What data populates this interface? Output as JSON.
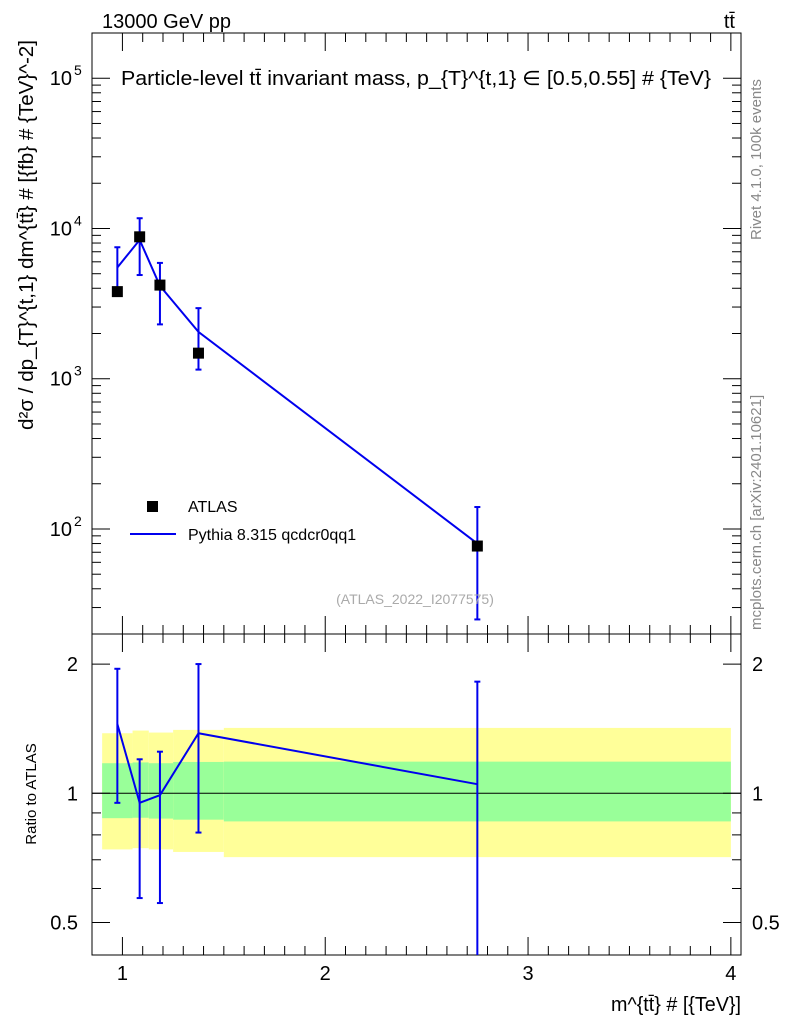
{
  "header": {
    "energy_label": "13000 GeV pp",
    "process_label": "tt̄",
    "side_version": "Rivet 4.1.0,  100k events",
    "side_source": "mcplots.cern.ch [arXiv:2401.10621]",
    "watermark": "(ATLAS_2022_I2077575)"
  },
  "chart_data": [
    {
      "type": "line",
      "panel": "main",
      "title": "Particle-level tt̄ invariant mass, p_{T}^{t,1} ∈ [0.5,0.55] # {TeV}",
      "ylabel": "d²σ / dp_{T}^{t,1} dm^{tt̄} # [{fb} # {TeV}^-2]",
      "xlabel": "m^{tt̄} # [{TeV}]",
      "yscale": "log",
      "xlim": [
        0.85,
        4.05
      ],
      "ylim": [
        20,
        200000
      ],
      "y_tick_labels": [
        "10^2",
        "10^3",
        "10^4",
        "10^5"
      ],
      "legend": [
        "ATLAS",
        "Pythia 8.315 qcdcr0qq1"
      ],
      "series": [
        {
          "name": "ATLAS",
          "marker": "square",
          "color": "#000000",
          "x": [
            0.975,
            1.085,
            1.185,
            1.375,
            2.75
          ],
          "values": [
            3800,
            8800,
            4200,
            1480,
            77
          ]
        },
        {
          "name": "Pythia 8.315 qcdcr0qq1",
          "marker": "line",
          "color": "#0000ee",
          "x": [
            0.975,
            1.085,
            1.185,
            1.375,
            2.75
          ],
          "values": [
            5500,
            8400,
            4150,
            2050,
            80
          ],
          "err_low": [
            3800,
            4900,
            2300,
            1150,
            25
          ],
          "err_high": [
            7500,
            11700,
            5900,
            2950,
            140
          ]
        }
      ]
    },
    {
      "type": "line",
      "panel": "ratio",
      "ylabel": "Ratio to ATLAS",
      "xlabel": "m^{tt̄} # [{TeV}]",
      "yscale": "log",
      "xlim": [
        0.85,
        4.05
      ],
      "ylim": [
        0.42,
        2.35
      ],
      "x_tick_labels": [
        "1",
        "2",
        "3",
        "4"
      ],
      "y_tick_labels": [
        "0.5",
        "1",
        "2"
      ],
      "reference_line": 1,
      "bands": {
        "x_edges": [
          0.9,
          1.05,
          1.13,
          1.25,
          1.5,
          4.0
        ],
        "outer_low": [
          0.74,
          0.745,
          0.74,
          0.73,
          0.71
        ],
        "outer_high": [
          1.38,
          1.4,
          1.385,
          1.405,
          1.42
        ],
        "inner_low": [
          0.875,
          0.877,
          0.873,
          0.868,
          0.86
        ],
        "inner_high": [
          1.175,
          1.18,
          1.175,
          1.183,
          1.185
        ],
        "outer_color": "#ffff99",
        "inner_color": "#99ff99"
      },
      "series": [
        {
          "name": "Pythia 8.315 qcdcr0qq1 / ATLAS",
          "color": "#0000ee",
          "x": [
            0.975,
            1.085,
            1.185,
            1.375,
            2.75
          ],
          "values": [
            1.45,
            0.95,
            0.99,
            1.38,
            1.05
          ],
          "err_low": [
            0.95,
            0.57,
            0.555,
            0.81,
            0.41
          ],
          "err_high": [
            1.95,
            1.2,
            1.25,
            2.0,
            1.82
          ]
        }
      ]
    }
  ]
}
